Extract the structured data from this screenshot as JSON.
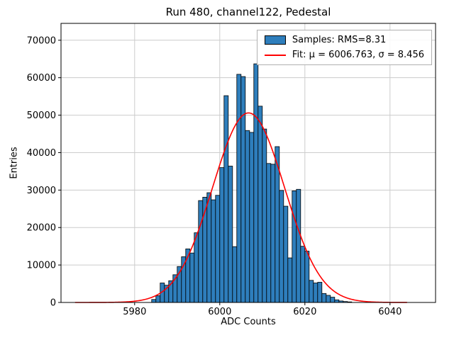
{
  "figure": {
    "title": "Run 480, channel122, Pedestal",
    "xlabel": "ADC Counts",
    "ylabel": "Entries"
  },
  "legend": {
    "samples_label": "Samples: RMS=8.31",
    "fit_label": "Fit: μ = 6006.763, σ = 8.456"
  },
  "colors": {
    "bar_fill": "#2e7ebc",
    "bar_edge": "#000000",
    "fit_line": "#ff0000",
    "grid": "#cccccc",
    "frame": "#000000"
  },
  "chart_data": {
    "type": "bar",
    "subtype": "histogram",
    "title": "Run 480, channel122, Pedestal",
    "xlabel": "ADC Counts",
    "ylabel": "Entries",
    "grid": true,
    "legend_position": "upper right",
    "xlim": [
      5962.7,
      6050.7
    ],
    "ylim": [
      0,
      74500
    ],
    "xticks": [
      5980,
      6000,
      6020,
      6040
    ],
    "yticks": [
      0,
      10000,
      20000,
      30000,
      40000,
      50000,
      60000,
      70000
    ],
    "bin_start": 5984,
    "bin_width": 1,
    "counts": [
      800,
      1800,
      5200,
      4600,
      5800,
      7400,
      9600,
      12200,
      14300,
      13200,
      18600,
      27200,
      28100,
      29300,
      27400,
      28600,
      36000,
      55200,
      36400,
      14900,
      60900,
      60300,
      45900,
      45400,
      63700,
      52400,
      46300,
      37100,
      36900,
      41600,
      29900,
      25700,
      11900,
      29800,
      30200,
      15000,
      13700,
      5900,
      5200,
      5400,
      2400,
      1900,
      1400,
      700,
      400,
      250,
      150
    ],
    "samples_rms": 8.31,
    "fit": {
      "mu": 6006.763,
      "sigma": 8.456,
      "peak": 50600,
      "x_range": [
        5966,
        6044
      ]
    }
  }
}
